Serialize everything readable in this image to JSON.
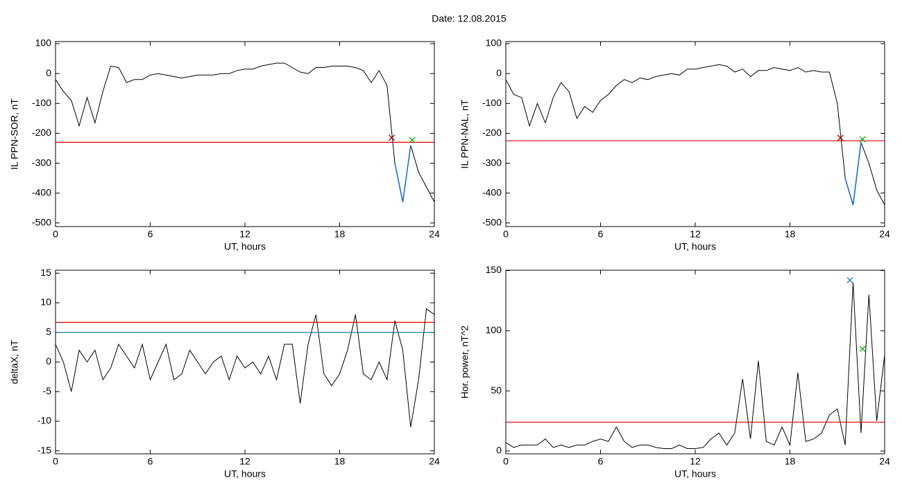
{
  "title": "Date:  12.08.2015",
  "chart_data": [
    {
      "type": "line",
      "ylabel": "IL PPN-SOR, nT",
      "xlabel": "UT, hours",
      "x": [
        0,
        0.5,
        1,
        1.5,
        2,
        2.5,
        3,
        3.5,
        4,
        4.5,
        5,
        5.5,
        6,
        6.5,
        7,
        7.5,
        8,
        8.5,
        9,
        9.5,
        10,
        10.5,
        11,
        11.5,
        12,
        12.5,
        13,
        13.5,
        14,
        14.5,
        15,
        15.5,
        16,
        16.5,
        17,
        17.5,
        18,
        18.5,
        19,
        19.5,
        20,
        20.5,
        21,
        21.5,
        22,
        22.5,
        23,
        23.5,
        24
      ],
      "series": [
        {
          "color": "#000000",
          "values": [
            -20,
            -60,
            -90,
            -175,
            -80,
            -165,
            -60,
            25,
            20,
            -30,
            -20,
            -20,
            -5,
            0,
            -5,
            -10,
            -15,
            -10,
            -5,
            -5,
            -5,
            0,
            0,
            10,
            15,
            15,
            25,
            30,
            35,
            35,
            20,
            5,
            0,
            20,
            20,
            25,
            25,
            25,
            20,
            10,
            -30,
            10,
            -40,
            -300,
            -430,
            -240,
            -330,
            -380,
            -430
          ]
        },
        {
          "color": "#1f6fd0",
          "values": [
            null,
            null,
            null,
            null,
            null,
            null,
            null,
            null,
            null,
            null,
            null,
            null,
            null,
            null,
            null,
            null,
            null,
            null,
            null,
            null,
            null,
            null,
            null,
            null,
            null,
            null,
            null,
            null,
            null,
            null,
            null,
            null,
            null,
            null,
            null,
            null,
            null,
            null,
            null,
            null,
            null,
            null,
            null,
            -300,
            -430,
            -240,
            null,
            null,
            null
          ]
        }
      ],
      "hlines": [
        {
          "value": -230,
          "color": "#e00000"
        }
      ],
      "markers": [
        {
          "x": 21.3,
          "y": -215,
          "color": "#8b0000"
        },
        {
          "x": 22.6,
          "y": -222,
          "color": "#00b000"
        }
      ],
      "xlim": [
        0,
        24
      ],
      "xticks": [
        0,
        6,
        12,
        18,
        24
      ],
      "ylim": [
        -512,
        107
      ],
      "yticks": [
        -500,
        -400,
        -300,
        -200,
        -100,
        0,
        100
      ]
    },
    {
      "type": "line",
      "ylabel": "IL PPN-NAL, nT",
      "xlabel": "UT, hours",
      "x": [
        0,
        0.5,
        1,
        1.5,
        2,
        2.5,
        3,
        3.5,
        4,
        4.5,
        5,
        5.5,
        6,
        6.5,
        7,
        7.5,
        8,
        8.5,
        9,
        9.5,
        10,
        10.5,
        11,
        11.5,
        12,
        12.5,
        13,
        13.5,
        14,
        14.5,
        15,
        15.5,
        16,
        16.5,
        17,
        17.5,
        18,
        18.5,
        19,
        19.5,
        20,
        20.5,
        21,
        21.5,
        22,
        22.5,
        23,
        23.5,
        24
      ],
      "series": [
        {
          "color": "#000000",
          "values": [
            -20,
            -70,
            -80,
            -175,
            -100,
            -165,
            -80,
            -30,
            -60,
            -150,
            -110,
            -130,
            -90,
            -70,
            -40,
            -20,
            -30,
            -15,
            -20,
            -10,
            -5,
            0,
            -5,
            15,
            15,
            20,
            25,
            30,
            25,
            5,
            15,
            -10,
            10,
            10,
            20,
            15,
            10,
            20,
            5,
            10,
            5,
            5,
            -100,
            -350,
            -440,
            -230,
            -300,
            -390,
            -440
          ]
        },
        {
          "color": "#1f6fd0",
          "values": [
            null,
            null,
            null,
            null,
            null,
            null,
            null,
            null,
            null,
            null,
            null,
            null,
            null,
            null,
            null,
            null,
            null,
            null,
            null,
            null,
            null,
            null,
            null,
            null,
            null,
            null,
            null,
            null,
            null,
            null,
            null,
            null,
            null,
            null,
            null,
            null,
            null,
            null,
            null,
            null,
            null,
            null,
            null,
            -350,
            -440,
            -230,
            null,
            null,
            null
          ]
        }
      ],
      "hlines": [
        {
          "value": -225,
          "color": "#e00000"
        }
      ],
      "markers": [
        {
          "x": 21.2,
          "y": -215,
          "color": "#8b0000"
        },
        {
          "x": 22.6,
          "y": -220,
          "color": "#00b000"
        }
      ],
      "xlim": [
        0,
        24
      ],
      "xticks": [
        0,
        6,
        12,
        18,
        24
      ],
      "ylim": [
        -512,
        107
      ],
      "yticks": [
        -500,
        -400,
        -300,
        -200,
        -100,
        0,
        100
      ]
    },
    {
      "type": "line",
      "ylabel": "deltaX, nT",
      "xlabel": "UT, hours",
      "x": [
        0,
        0.5,
        1,
        1.5,
        2,
        2.5,
        3,
        3.5,
        4,
        4.5,
        5,
        5.5,
        6,
        6.5,
        7,
        7.5,
        8,
        8.5,
        9,
        9.5,
        10,
        10.5,
        11,
        11.5,
        12,
        12.5,
        13,
        13.5,
        14,
        14.5,
        15,
        15.5,
        16,
        16.5,
        17,
        17.5,
        18,
        18.5,
        19,
        19.5,
        20,
        20.5,
        21,
        21.5,
        22,
        22.5,
        23,
        23.5,
        24
      ],
      "series": [
        {
          "color": "#000000",
          "values": [
            3,
            0,
            -5,
            2,
            0,
            2,
            -3,
            -1,
            3,
            1,
            -1,
            3,
            -3,
            0,
            3,
            -3,
            -2,
            2,
            0,
            -2,
            0,
            1,
            -3,
            1,
            -1,
            0,
            -2,
            1,
            -3,
            3,
            3,
            -7,
            3,
            8,
            -2,
            -4,
            -2,
            2,
            8,
            -2,
            -3,
            0,
            -3,
            7,
            2,
            -11,
            -3,
            9,
            8
          ]
        }
      ],
      "hlines": [
        {
          "value": 6.7,
          "color": "#e00000"
        },
        {
          "value": 5,
          "color": "#1a7a9a"
        }
      ],
      "markers": [],
      "xlim": [
        0,
        24
      ],
      "xticks": [
        0,
        6,
        12,
        18,
        24
      ],
      "ylim": [
        -15.5,
        15.5
      ],
      "yticks": [
        -15,
        -10,
        -5,
        0,
        5,
        10,
        15
      ]
    },
    {
      "type": "line",
      "ylabel": "Hor. power, nT^2",
      "xlabel": "UT, hours",
      "x": [
        0,
        0.5,
        1,
        1.5,
        2,
        2.5,
        3,
        3.5,
        4,
        4.5,
        5,
        5.5,
        6,
        6.5,
        7,
        7.5,
        8,
        8.5,
        9,
        9.5,
        10,
        10.5,
        11,
        11.5,
        12,
        12.5,
        13,
        13.5,
        14,
        14.5,
        15,
        15.5,
        16,
        16.5,
        17,
        17.5,
        18,
        18.5,
        19,
        19.5,
        20,
        20.5,
        21,
        21.5,
        22,
        22.5,
        23,
        23.5,
        24
      ],
      "series": [
        {
          "color": "#000000",
          "values": [
            7,
            3,
            5,
            5,
            5,
            10,
            3,
            5,
            3,
            5,
            5,
            8,
            10,
            8,
            20,
            8,
            3,
            5,
            5,
            3,
            2,
            2,
            5,
            2,
            2,
            3,
            10,
            15,
            5,
            15,
            60,
            10,
            75,
            8,
            5,
            20,
            5,
            65,
            8,
            10,
            15,
            30,
            35,
            5,
            140,
            15,
            130,
            25,
            80
          ]
        }
      ],
      "hlines": [
        {
          "value": 24,
          "color": "#e00000"
        }
      ],
      "markers": [
        {
          "x": 21.8,
          "y": 142,
          "color": "#1f6fd0"
        },
        {
          "x": 22.6,
          "y": 85,
          "color": "#00b000"
        }
      ],
      "xlim": [
        0,
        24
      ],
      "xticks": [
        0,
        6,
        12,
        18,
        24
      ],
      "ylim": [
        -2.3,
        150.3
      ],
      "yticks": [
        0,
        50,
        100,
        150
      ]
    }
  ]
}
